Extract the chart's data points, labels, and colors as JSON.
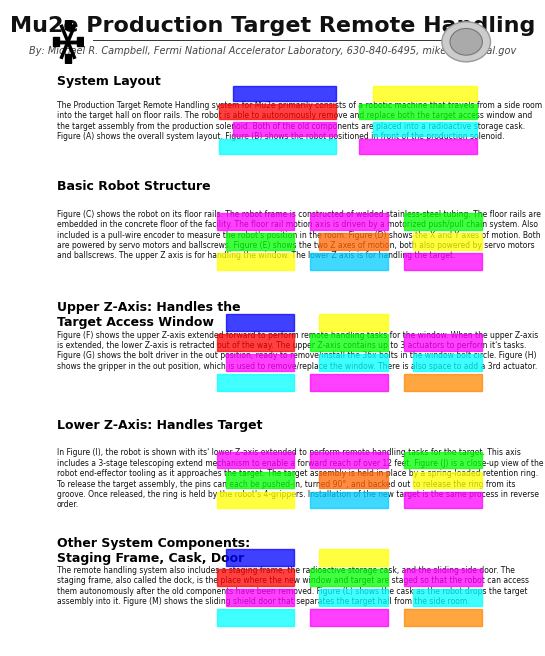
{
  "title": "Mu2e Production Target Remote Handling",
  "subtitle": "By: Michael R. Campbell, Fermi National Accelerator Laboratory, 630-840-6495, mikecam@fnal.gov",
  "bg_color": "#ffffff",
  "header_bg": "#ffffff",
  "sections": [
    {
      "title": "System Layout",
      "body": "The Production Target Remote Handling system for Mu2e primarily consists of a robotic machine that travels from a side room into the target hall on floor rails. The robot is able to autonomously remove and replace both the target access window and the target assembly from the production solenoid. Both of the old components are placed into a radioactive storage cask. Figure (A) shows the overall system layout. Figure (B) shows the robot positioned in front of the production solenoid.",
      "n_images": 2
    },
    {
      "title": "Basic Robot Structure",
      "body": "Figure (C) shows the robot on its floor rails. The robot frame is constructed of welded stainless-steel tubing. The floor rails are embedded in the concrete floor of the facility. The floor rail motion axis is driven by a motorized push/pull chain system. Also included is a pull-wire encoder to measure the robot's position in the room. Figure (D) shows the X and Y axes of motion. Both are powered by servo motors and ballscrews. Figure (E) shows the two Z axes of motion, both also powered by servo motors and ballscrews. The upper Z axis is for handling the window. The lower Z axis is for handling the target.",
      "n_images": 3
    },
    {
      "title": "Upper Z-Axis: Handles the\nTarget Access Window",
      "body": "Figure (F) shows the upper Z-axis extended forward to perform remote handling tasks for the window. When the upper Z-axis is extended, the lower Z-axis is retracted out of the way. The upper Z-axis contains up to 3 actuators to perform it's tasks. Figure (G) shows the bolt driver in the out position, ready to remove/install the 36x bolts in the window bolt circle. Figure (H) shows the gripper in the out position, which is used to remove/replace the window. There is also space to add a 3rd actuator.",
      "n_images": 3
    },
    {
      "title": "Lower Z-Axis: Handles Target",
      "body": "In Figure (I), the robot is shown with its' lower Z-axis extended to perform remote handling tasks for the target. This axis includes a 3-stage telescoping extend mechanism to enable a forward reach of over 12 feet. Figure (J) is a close-up view of the robot end-effector tooling as it approaches the target. The target assembly is held in place by a spring-loaded retention ring. To release the target assembly, the pins can each be pushed-in, turned 90°, and backed out to release the ring from its groove. Once released, the ring is held by the robot's 4-grippers. Installation of the new target is the same process in reverse order.",
      "n_images": 3
    },
    {
      "title": "Other System Components:\nStaging Frame, Cask, Door",
      "body": "The remote handling system also includes a staging frame, the radioactive storage cask, and the sliding side door. The staging frame, also called the dock, is the place where the new window and target are staged so that the robot can access them autonomously after the old components have been removed. Figure (L) shows the cask as the robot drops the target assembly into it. Figure (M) shows the sliding shield door that separates the target hall from the side room.",
      "n_images": 3
    }
  ],
  "image_colors": {
    "sys_layout_A": {
      "bg": "#000000",
      "accent1": "#00ffff",
      "accent2": "#ff00ff",
      "accent3": "#ff0000",
      "accent4": "#0000ff"
    },
    "sys_layout_B": {
      "bg": "#000000",
      "accent1": "#ff00ff",
      "accent2": "#00ffff",
      "accent3": "#ff0000"
    },
    "robot_C": {
      "bg": "#000000",
      "accent1": "#ff00ff",
      "accent2": "#00ffff",
      "accent3": "#ffaa00"
    },
    "robot_D": {
      "bg": "#000000",
      "accent1": "#00ffff",
      "accent2": "#ffff00",
      "accent3": "#ff00ff"
    },
    "robot_E": {
      "bg": "#000000",
      "accent1": "#ff00ff",
      "accent2": "#00ffff",
      "accent3": "#00ff00"
    }
  },
  "divider_color": "#aaaaaa",
  "title_fontsize": 16,
  "subtitle_fontsize": 7,
  "section_title_fontsize": 9,
  "body_fontsize": 5.5,
  "header_line_color": "#333333"
}
